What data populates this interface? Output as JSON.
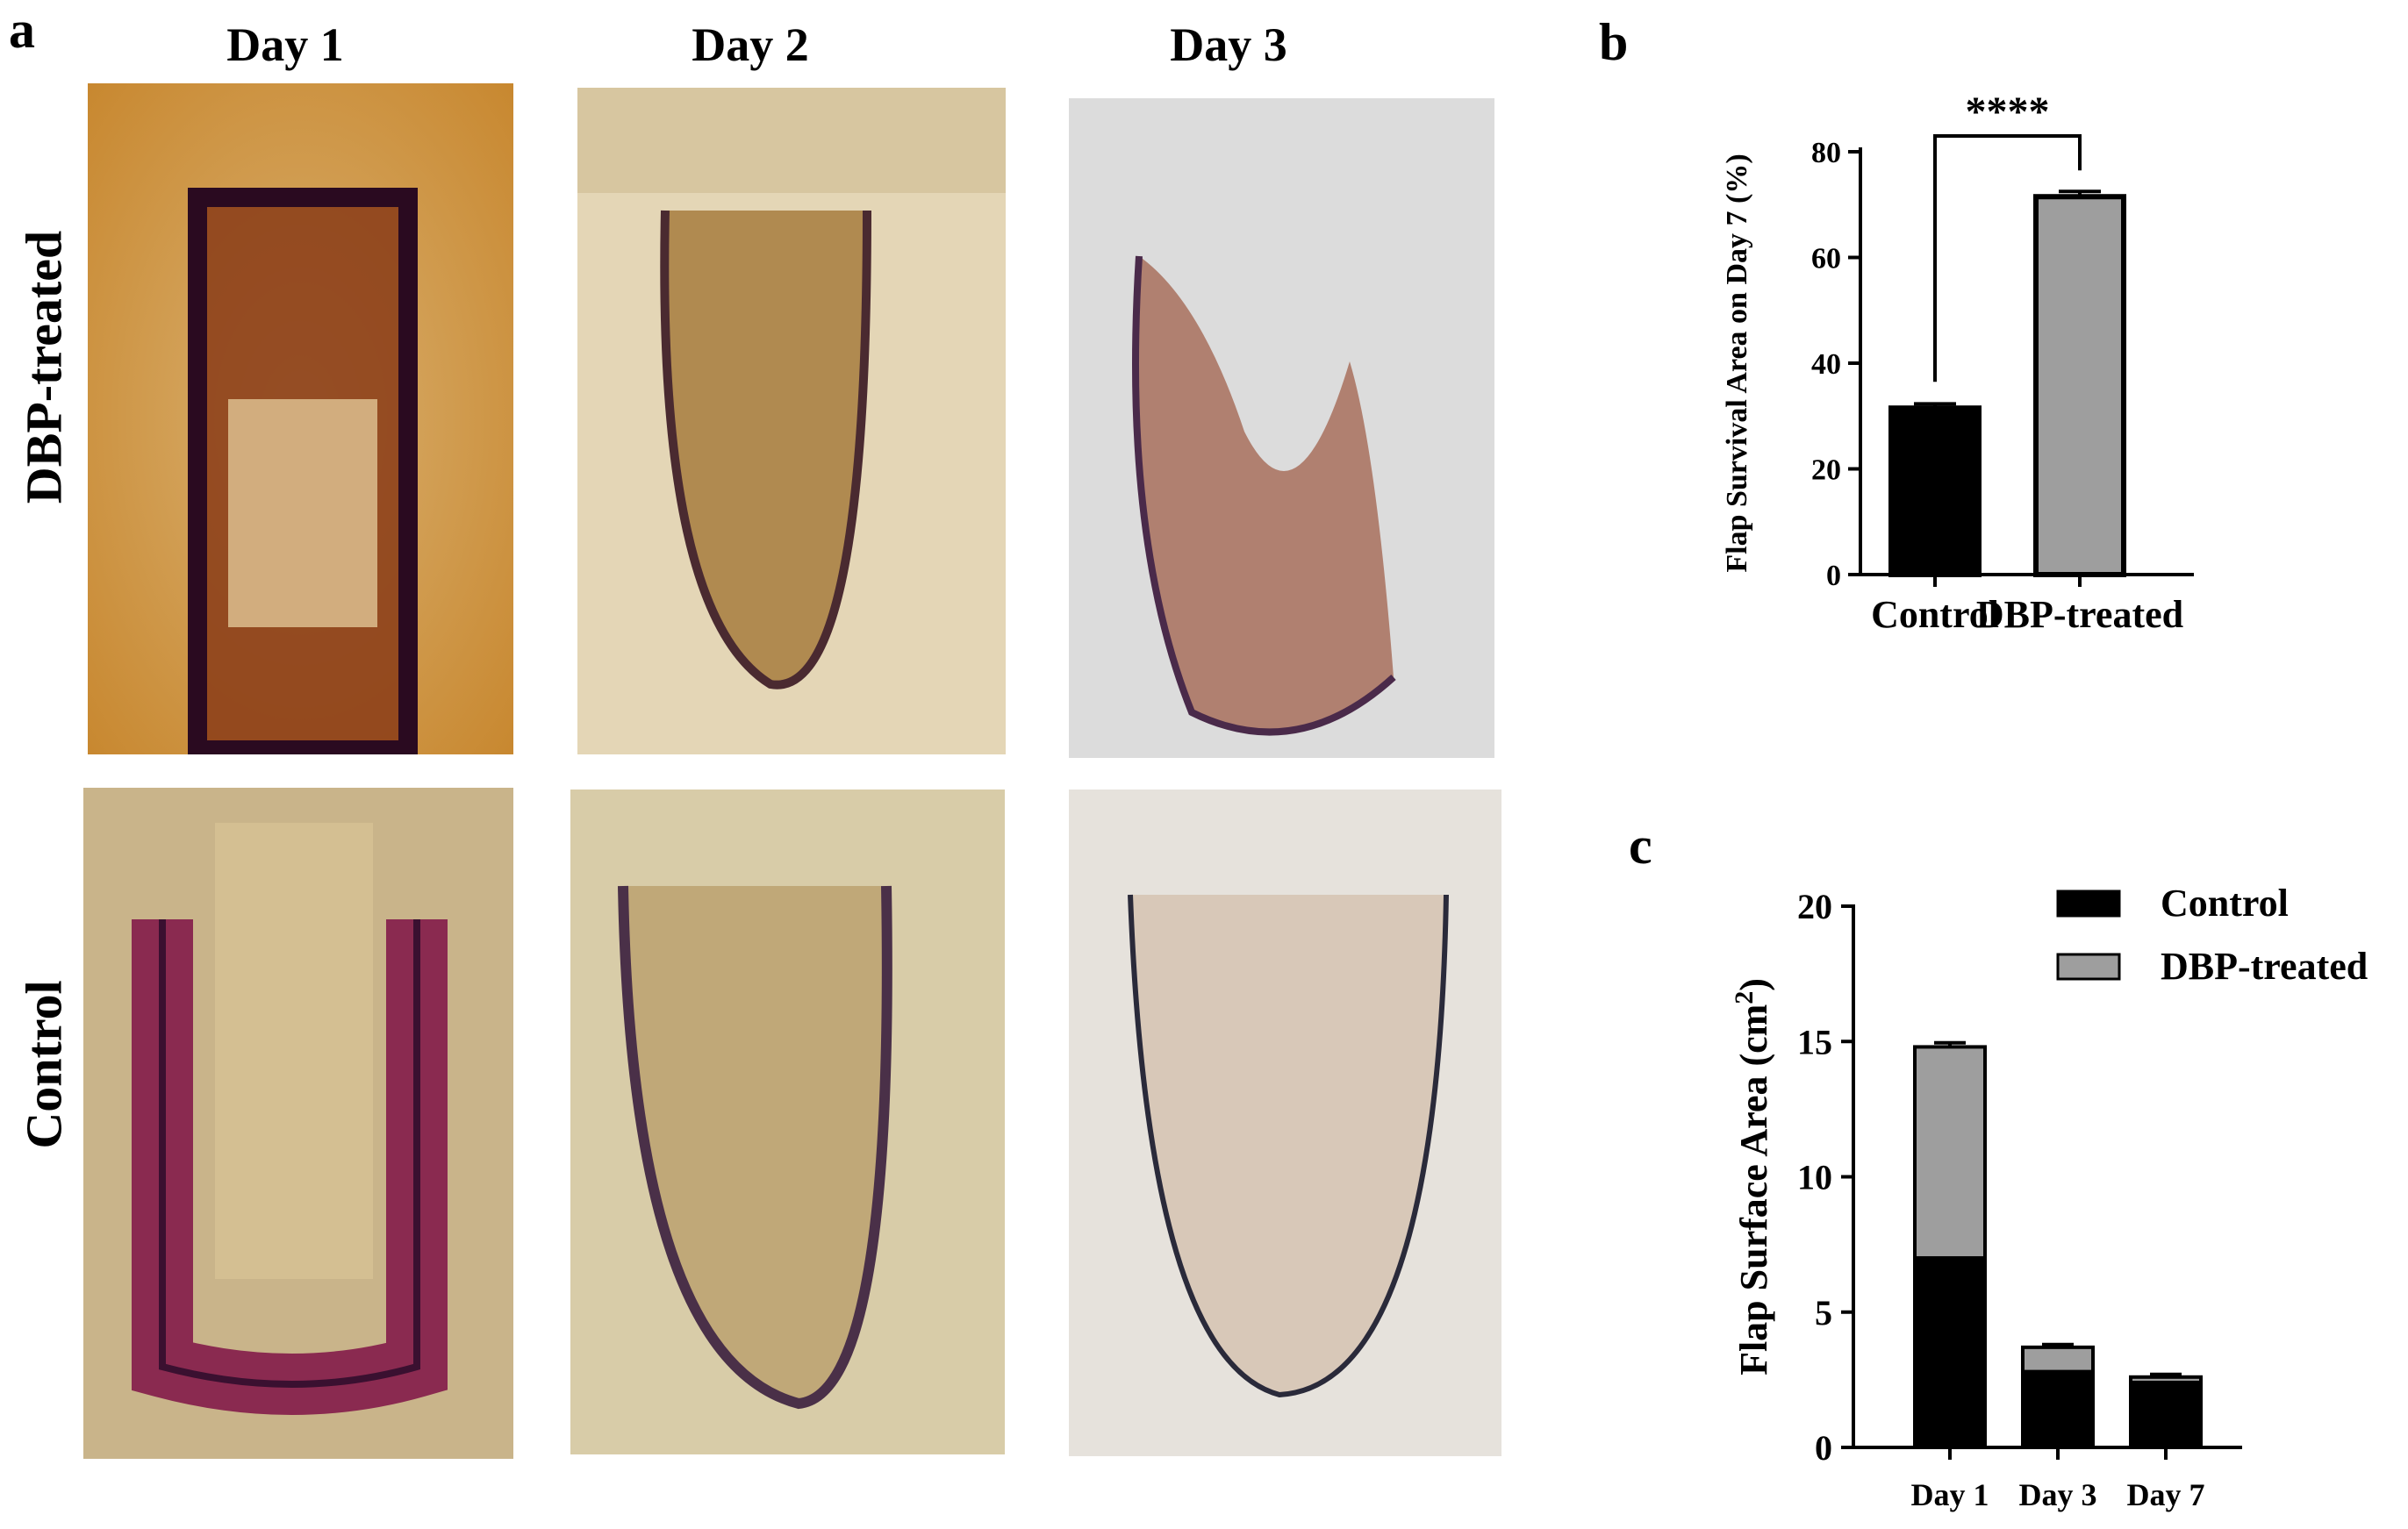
{
  "panels": {
    "a": {
      "letter": "a",
      "days": [
        "Day 1",
        "Day 2",
        "Day 3"
      ],
      "rows": [
        "DBP-treated",
        "Control"
      ]
    },
    "b": {
      "letter": "b"
    },
    "c": {
      "letter": "c"
    }
  },
  "colors": {
    "control": "#000000",
    "dbp": "#9e9e9e"
  },
  "chart_data": [
    {
      "panel": "b",
      "type": "bar",
      "categories": [
        "Control",
        "DBP-treated"
      ],
      "values": [
        31.5,
        71.5
      ],
      "errors": [
        0.8,
        1.0
      ],
      "ylabel": "Flap Survival Area on Day 7  (%)",
      "ylim": [
        0,
        80
      ],
      "yticks": [
        0,
        20,
        40,
        60,
        80
      ],
      "significance": "****",
      "grid": false
    },
    {
      "panel": "c",
      "type": "bar",
      "stacked": true,
      "categories": [
        "Day 1",
        "Day 3",
        "Day 7"
      ],
      "series": [
        {
          "name": "Control",
          "values": [
            7.0,
            2.8,
            2.4
          ],
          "errors": [
            0.15,
            0.1,
            0.1
          ]
        },
        {
          "name": "DBP-treated",
          "values": [
            7.8,
            0.9,
            0.2
          ],
          "errors": [
            0.15,
            0.1,
            0.1
          ]
        }
      ],
      "ylabel": "Flap Surface Area (cm",
      "ylabel_sup": "2",
      "ylabel_close": ")",
      "ylim": [
        0,
        20
      ],
      "yticks": [
        0,
        5,
        10,
        15,
        20
      ],
      "legend_position": "top-right",
      "grid": false
    }
  ]
}
